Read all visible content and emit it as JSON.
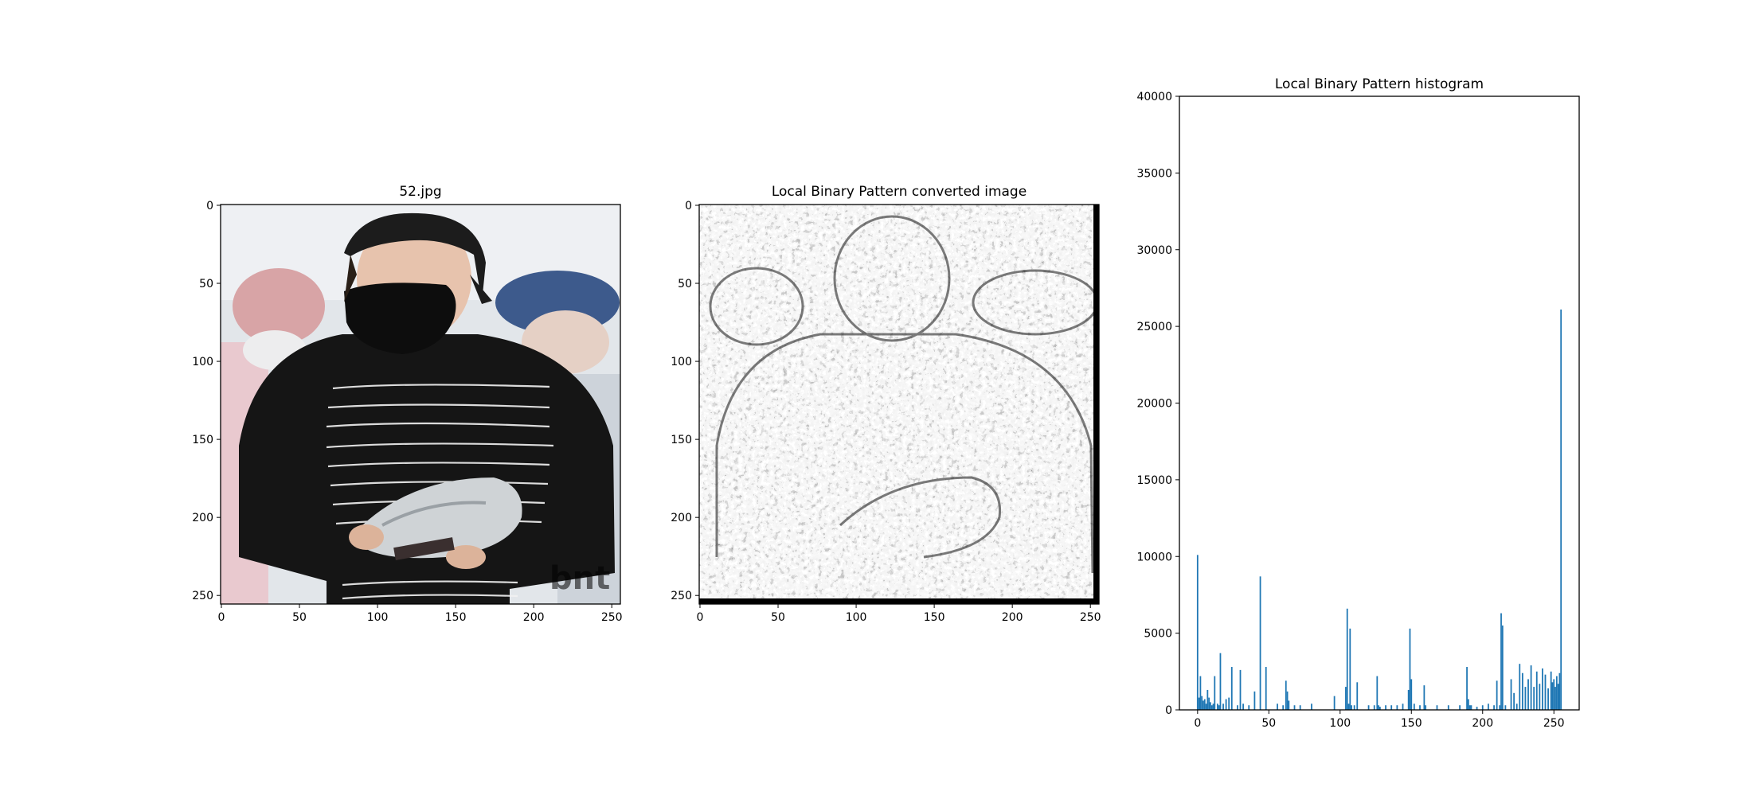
{
  "figure": {
    "panels": [
      {
        "title": "52.jpg",
        "kind": "image",
        "xlim": [
          0,
          255
        ],
        "ylim": [
          255,
          0
        ],
        "x_ticks": [
          "0",
          "50",
          "100",
          "150",
          "200",
          "250"
        ],
        "y_ticks": [
          "0",
          "50",
          "100",
          "150",
          "200",
          "250"
        ],
        "image_description": "person in black cap, black face mask and black sweatshirt with white handwritten text, holding a silver bag; pale background with two other people"
      },
      {
        "title": "Local Binary Pattern converted image",
        "kind": "image",
        "xlim": [
          0,
          255
        ],
        "ylim": [
          255,
          0
        ],
        "x_ticks": [
          "0",
          "50",
          "100",
          "150",
          "200",
          "250"
        ],
        "y_ticks": [
          "0",
          "50",
          "100",
          "150",
          "200",
          "250"
        ],
        "image_description": "grayscale LBP texture rendering of the same photo"
      },
      {
        "title": "Local Binary Pattern histogram",
        "kind": "histogram",
        "x_ticks": [
          "0",
          "50",
          "100",
          "150",
          "200",
          "250"
        ],
        "y_ticks": [
          "0",
          "5000",
          "10000",
          "15000",
          "20000",
          "25000",
          "30000",
          "35000",
          "40000"
        ]
      }
    ]
  },
  "chart_data": {
    "type": "bar",
    "title": "Local Binary Pattern histogram",
    "xlabel": "",
    "ylabel": "",
    "xlim": [
      -12.75,
      267.75
    ],
    "ylim": [
      0,
      40000
    ],
    "grid": false,
    "bar_color": "#1f77b4",
    "x": [
      0,
      1,
      2,
      3,
      4,
      5,
      6,
      7,
      8,
      9,
      10,
      11,
      12,
      14,
      15,
      16,
      18,
      20,
      22,
      24,
      28,
      30,
      32,
      36,
      40,
      44,
      48,
      56,
      60,
      62,
      63,
      64,
      68,
      72,
      80,
      96,
      104,
      105,
      106,
      107,
      108,
      110,
      112,
      120,
      124,
      126,
      127,
      128,
      132,
      136,
      140,
      144,
      148,
      149,
      150,
      152,
      156,
      159,
      160,
      168,
      176,
      184,
      189,
      190,
      191,
      192,
      196,
      200,
      204,
      208,
      210,
      212,
      213,
      214,
      216,
      220,
      222,
      224,
      226,
      228,
      230,
      232,
      234,
      236,
      238,
      240,
      242,
      244,
      246,
      248,
      249,
      250,
      251,
      252,
      253,
      254,
      255
    ],
    "values": [
      10100,
      800,
      2200,
      900,
      600,
      700,
      400,
      1300,
      800,
      500,
      300,
      400,
      2200,
      400,
      300,
      3700,
      400,
      700,
      800,
      2800,
      300,
      2600,
      400,
      300,
      1200,
      8700,
      2800,
      400,
      300,
      1900,
      1200,
      600,
      300,
      300,
      400,
      900,
      1500,
      6600,
      400,
      5300,
      300,
      300,
      1800,
      300,
      300,
      2200,
      300,
      200,
      300,
      300,
      300,
      400,
      1300,
      5300,
      2000,
      400,
      300,
      1600,
      300,
      300,
      300,
      300,
      2800,
      700,
      300,
      300,
      200,
      300,
      400,
      300,
      1900,
      300,
      6300,
      5500,
      300,
      2000,
      1100,
      400,
      3000,
      2400,
      1500,
      2000,
      2900,
      1500,
      2500,
      1700,
      2700,
      2300,
      1400,
      2500,
      1800,
      2000,
      1500,
      2200,
      1700,
      2400,
      26100
    ]
  }
}
